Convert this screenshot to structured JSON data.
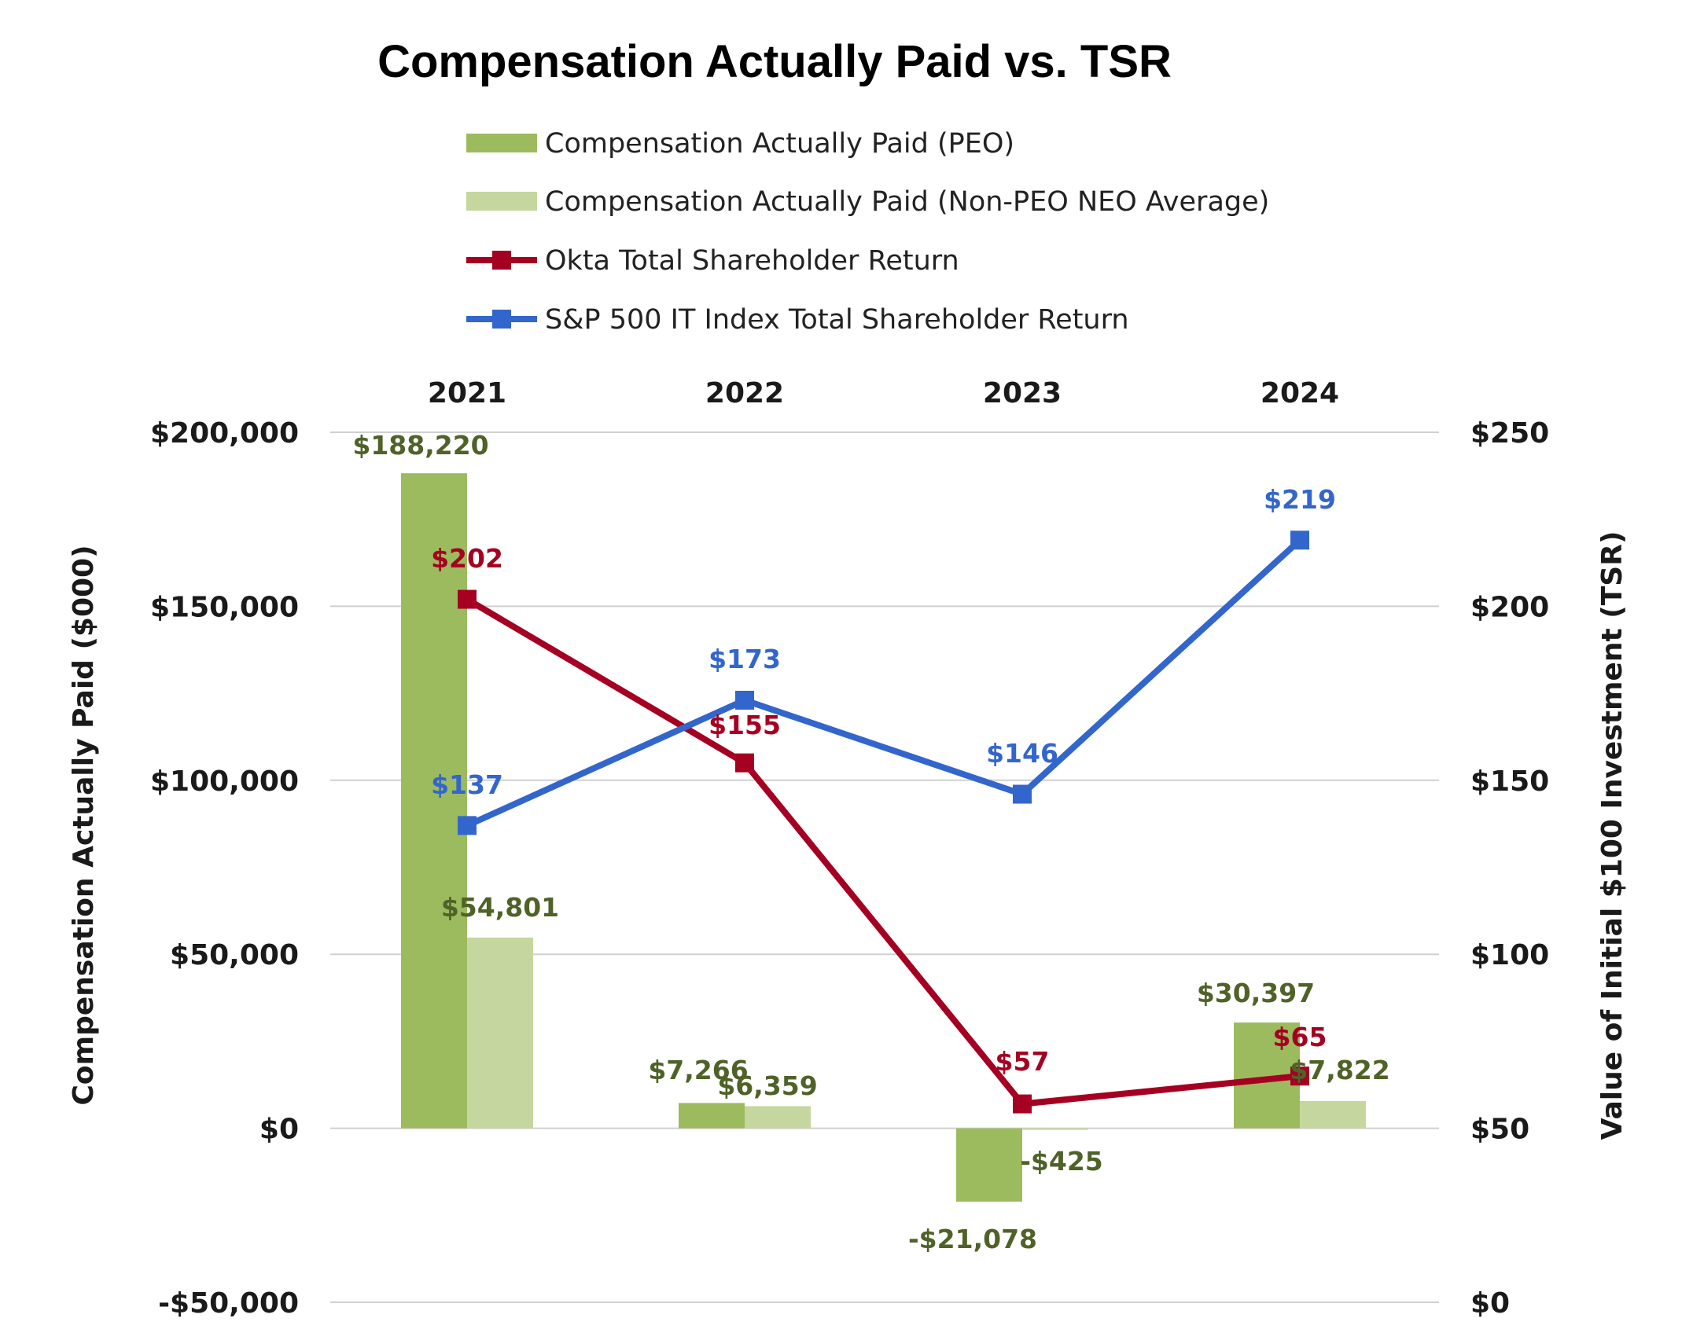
{
  "chart_data": {
    "type": "bar",
    "title": "Compensation Actually Paid vs. TSR",
    "categories": [
      "2021",
      "2022",
      "2023",
      "2024"
    ],
    "ylabel_left": "Compensation Actually Paid ($000)",
    "ylabel_right": "Value of Initial $100 Investment (TSR)",
    "ylim_left": [
      -50000,
      200000
    ],
    "ylim_right": [
      0,
      250
    ],
    "yticks_left": [
      200000,
      150000,
      100000,
      50000,
      0,
      -50000
    ],
    "yticks_left_labels": [
      "$200,000",
      "$150,000",
      "$100,000",
      "$50,000",
      "$0",
      "-$50,000"
    ],
    "yticks_right": [
      250,
      200,
      150,
      100,
      50,
      0
    ],
    "yticks_right_labels": [
      "$250",
      "$200",
      "$150",
      "$100",
      "$50",
      "$0"
    ],
    "grid": true,
    "legend_position": "top",
    "series": [
      {
        "name": "Compensation Actually Paid (PEO)",
        "kind": "bar",
        "axis": "left",
        "color": "#9cbb5f",
        "label_color": "#4f6228",
        "values": [
          188220,
          7266,
          -21078,
          30397
        ],
        "labels": [
          "$188,220",
          "$7,266",
          "-$21,078",
          "$30,397"
        ]
      },
      {
        "name": "Compensation Actually Paid (Non-PEO NEO Average)",
        "kind": "bar",
        "axis": "left",
        "color": "#c5d79f",
        "label_color": "#4f6228",
        "values": [
          54801,
          6359,
          -425,
          7822
        ],
        "labels": [
          "$54,801",
          "$6,359",
          "-$425",
          "$7,822"
        ]
      },
      {
        "name": "Okta Total Shareholder Return",
        "kind": "line",
        "axis": "right",
        "color": "#a50021",
        "label_color": "#a50021",
        "values": [
          202,
          155,
          57,
          65
        ],
        "labels": [
          "$202",
          "$155",
          "$57",
          "$65"
        ]
      },
      {
        "name": "S&P 500 IT Index Total Shareholder Return",
        "kind": "line",
        "axis": "right",
        "color": "#3366cc",
        "label_color": "#3366cc",
        "values": [
          137,
          173,
          146,
          219
        ],
        "labels": [
          "$137",
          "$173",
          "$146",
          "$219"
        ]
      }
    ]
  }
}
